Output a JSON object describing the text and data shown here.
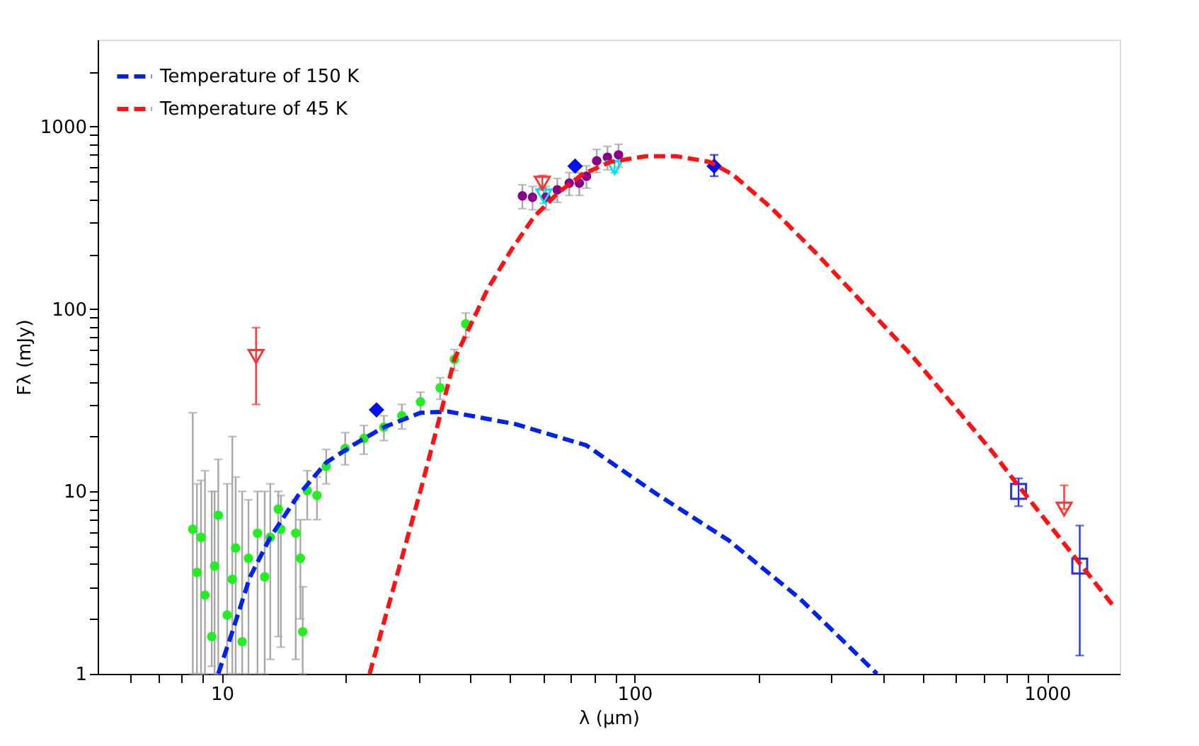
{
  "chart_data": {
    "type": "scatter",
    "xlabel": "λ (μm)",
    "ylabel": "Fλ (mJy)",
    "log": "xy",
    "grid": false,
    "legend": "top left",
    "xlim": [
      5,
      1500
    ],
    "ylim": [
      1,
      3000
    ],
    "xticks": [
      {
        "value": 6,
        "label": null
      },
      {
        "value": 7,
        "label": null
      },
      {
        "value": 8,
        "label": null
      },
      {
        "value": 9,
        "label": null
      },
      10,
      {
        "value": 20,
        "label": null
      },
      {
        "value": 30,
        "label": null
      },
      {
        "value": 40,
        "label": null
      },
      {
        "value": 50,
        "label": null
      },
      {
        "value": 60,
        "label": null
      },
      {
        "value": 70,
        "label": null
      },
      {
        "value": 80,
        "label": null
      },
      {
        "value": 90,
        "label": null
      },
      100,
      {
        "value": 200,
        "label": null
      },
      {
        "value": 300,
        "label": null
      },
      {
        "value": 400,
        "label": null
      },
      {
        "value": 500,
        "label": null
      },
      {
        "value": 600,
        "label": null
      },
      {
        "value": 700,
        "label": null
      },
      {
        "value": 800,
        "label": null
      },
      {
        "value": 900,
        "label": null
      },
      1000
    ],
    "yticks": [
      1,
      {
        "value": 2,
        "label": null
      },
      {
        "value": 3,
        "label": null
      },
      {
        "value": 4,
        "label": null
      },
      {
        "value": 5,
        "label": null
      },
      {
        "value": 6,
        "label": null
      },
      {
        "value": 7,
        "label": null
      },
      {
        "value": 8,
        "label": null
      },
      {
        "value": 9,
        "label": null
      },
      10,
      {
        "value": 20,
        "label": null
      },
      {
        "value": 30,
        "label": null
      },
      {
        "value": 40,
        "label": null
      },
      {
        "value": 50,
        "label": null
      },
      {
        "value": 60,
        "label": null
      },
      {
        "value": 70,
        "label": null
      },
      {
        "value": 80,
        "label": null
      },
      {
        "value": 90,
        "label": null
      },
      100,
      {
        "value": 200,
        "label": null
      },
      {
        "value": 300,
        "label": null
      },
      {
        "value": 400,
        "label": null
      },
      {
        "value": 500,
        "label": null
      },
      {
        "value": 600,
        "label": null
      },
      {
        "value": 700,
        "label": null
      },
      {
        "value": 800,
        "label": null
      },
      {
        "value": 900,
        "label": null
      },
      1000,
      {
        "value": 2000,
        "label": null
      }
    ],
    "series": [
      {
        "marker": "circle",
        "color": "#22ee22",
        "x": [
          8.5,
          8.9,
          8.7,
          9.1,
          9.45,
          9.8,
          9.6,
          10.3,
          10.6,
          11.2,
          10.8,
          11.6,
          12.2,
          12.7,
          13.1,
          13.7,
          13.9,
          15.1,
          15.5,
          15.7,
          16.1,
          17.0,
          17.9,
          19.9,
          22.1,
          24.7,
          27.3,
          30.3,
          33.8,
          36.6,
          39.0
        ],
        "values": [
          6.2,
          5.6,
          3.6,
          2.7,
          1.6,
          7.4,
          3.9,
          2.1,
          3.3,
          1.5,
          4.9,
          4.3,
          5.9,
          3.4,
          5.6,
          8.0,
          6.2,
          5.9,
          4.3,
          1.7,
          10.1,
          9.5,
          13.7,
          17.2,
          19.5,
          22.5,
          26,
          31,
          37,
          53,
          83
        ],
        "errors": [
          [
            1,
            27
          ],
          [
            1,
            11.5
          ],
          [
            1,
            11
          ],
          [
            1,
            13
          ],
          [
            1.1,
            10
          ],
          [
            1,
            15
          ],
          [
            1,
            10
          ],
          [
            1,
            11
          ],
          [
            1,
            20
          ],
          [
            1,
            10
          ],
          [
            1,
            12
          ],
          [
            1,
            9
          ],
          [
            1,
            10
          ],
          [
            1,
            10
          ],
          [
            1.2,
            11
          ],
          [
            1.6,
            10
          ],
          [
            1.4,
            9.5
          ],
          [
            1.2,
            9
          ],
          [
            2,
            7
          ],
          [
            1,
            3
          ],
          [
            7,
            13
          ],
          [
            7,
            12
          ],
          [
            11,
            17
          ],
          [
            14,
            21
          ],
          [
            16,
            23
          ],
          [
            19,
            26
          ],
          [
            22,
            30
          ],
          [
            27,
            35
          ],
          [
            32,
            42
          ],
          [
            46,
            60
          ],
          [
            70,
            95
          ]
        ]
      },
      {
        "marker": "circle",
        "color": "#8b008b",
        "x": [
          53.5,
          56.6,
          61,
          65,
          69.5,
          73.5,
          76.5,
          81,
          86,
          91.5
        ],
        "values": [
          417,
          410,
          410,
          450,
          490,
          490,
          535,
          650,
          680,
          700
        ],
        "errors": [
          [
            355,
            480
          ],
          [
            350,
            470
          ],
          [
            350,
            470
          ],
          [
            385,
            520
          ],
          [
            420,
            560
          ],
          [
            420,
            560
          ],
          [
            460,
            610
          ],
          [
            560,
            750
          ],
          [
            580,
            780
          ],
          [
            600,
            800
          ]
        ]
      },
      {
        "marker": "triangle",
        "color": "#00e0ee",
        "x": [
          60.3,
          89.5
        ],
        "values": [
          417,
          597
        ],
        "errors": [
          [
            380,
            450
          ],
          [
            560,
            640
          ]
        ]
      },
      {
        "marker": "triangle",
        "color": "#ff3333",
        "x": [
          12.1,
          59.8,
          1100
        ],
        "values": [
          55,
          490,
          8
        ],
        "errors": [
          [
            30,
            79
          ],
          [
            460,
            540
          ],
          [
            8,
            10.8
          ]
        ]
      },
      {
        "marker": "diamond",
        "color": "#0010ee",
        "x": [
          23.7,
          71.8,
          156
        ],
        "values": [
          28,
          608,
          608
        ],
        "errors": [
          null,
          null,
          [
            535,
            700
          ]
        ]
      },
      {
        "marker": "square",
        "color": "#2233ee",
        "x": [
          853,
          1200
        ],
        "values": [
          10.0,
          3.9
        ],
        "errors": [
          [
            8.3,
            11.8
          ],
          [
            1.26,
            6.5
          ]
        ]
      },
      {
        "type": "line",
        "name": "Temperature of 150 K",
        "color": "#0022ee",
        "line_style": "dashed",
        "x": [
          9.8,
          10.6,
          11.7,
          13.1,
          15.3,
          17.9,
          21,
          24.7,
          30.3,
          35.4,
          51.4,
          76.4,
          113,
          169,
          251,
          387
        ],
        "values": [
          1,
          1.7,
          3.4,
          5.6,
          9.5,
          14.4,
          18.2,
          22.5,
          27,
          27.4,
          23.4,
          17.9,
          9.7,
          5.4,
          2.6,
          1
        ]
      },
      {
        "type": "line",
        "name": "Temperature of 45 K",
        "color": "#ff1111",
        "line_style": "dashed",
        "x": [
          22.8,
          26.7,
          30.3,
          33.8,
          36.6,
          44,
          50.3,
          57,
          65.2,
          74.6,
          87.4,
          107,
          126,
          152,
          173,
          214,
          277,
          472,
          740,
          820,
          1460
        ],
        "values": [
          1,
          3.6,
          10.1,
          26,
          53,
          128,
          211,
          319,
          433,
          546,
          641,
          689,
          689,
          641,
          546,
          361,
          200,
          55,
          16.3,
          12.0,
          2.3
        ]
      }
    ]
  }
}
